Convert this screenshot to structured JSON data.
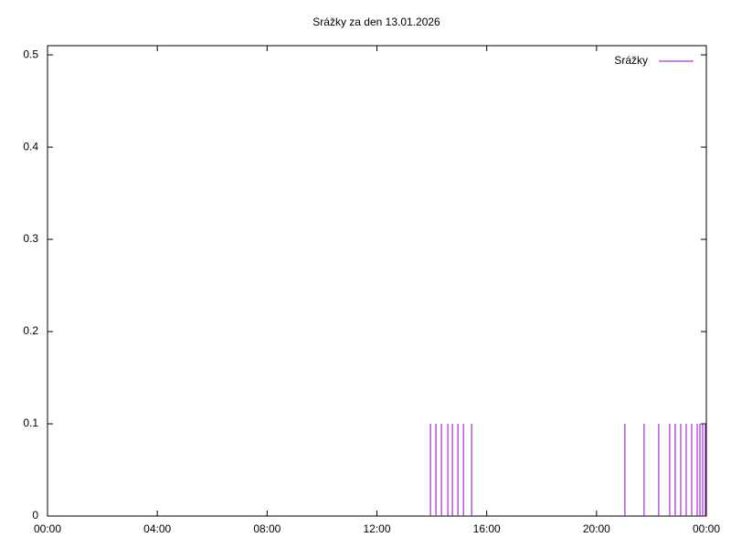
{
  "chart_data": {
    "type": "impulses",
    "title": "Srážky za den 13.01.2026",
    "x": [
      837,
      849,
      861,
      875,
      885,
      897,
      909,
      927,
      1262,
      1304,
      1336,
      1360,
      1372,
      1384,
      1396,
      1408,
      1420,
      1426,
      1432,
      1438
    ],
    "series": [
      {
        "name": "Srážky",
        "color": "#9400d3",
        "values": [
          0.1,
          0.1,
          0.1,
          0.1,
          0.1,
          0.1,
          0.1,
          0.1,
          0.1,
          0.1,
          0.1,
          0.1,
          0.1,
          0.1,
          0.1,
          0.1,
          0.1,
          0.1,
          0.1,
          0.1
        ]
      }
    ],
    "xlim": [
      0,
      1440
    ],
    "xticks": [
      {
        "value": 0,
        "label": "00:00"
      },
      {
        "value": 240,
        "label": "04:00"
      },
      {
        "value": 480,
        "label": "08:00"
      },
      {
        "value": 720,
        "label": "12:00"
      },
      {
        "value": 960,
        "label": "16:00"
      },
      {
        "value": 1200,
        "label": "20:00"
      },
      {
        "value": 1440,
        "label": "00:00"
      }
    ],
    "ylim": [
      0,
      0.51
    ],
    "yticks": [
      0,
      0.1,
      0.2,
      0.3,
      0.4,
      0.5
    ],
    "legend": "top-right"
  }
}
